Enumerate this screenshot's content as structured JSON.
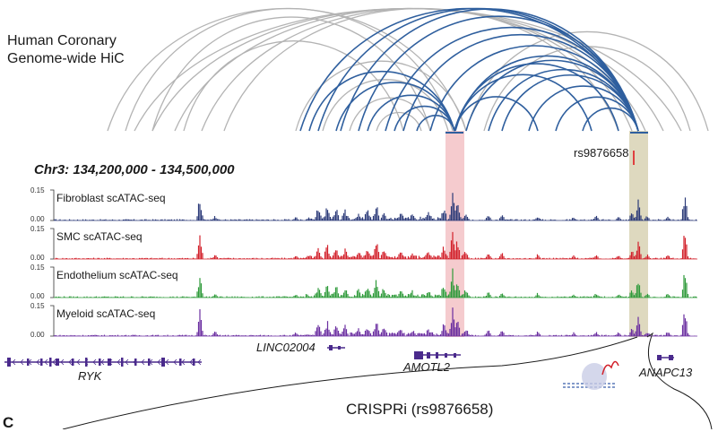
{
  "title_line1": "Human Coronary",
  "title_line2": "Genome-wide HiC",
  "region": "Chr3: 134,200,000 - 134,500,000",
  "snp": "rs9876658",
  "tracks": [
    {
      "label": "Fibroblast scATAC-seq",
      "color": "#2b3a78",
      "ymax": "0.15",
      "ymin": "0.00"
    },
    {
      "label": "SMC scATAC-seq",
      "color": "#d2202a",
      "ymax": "0.15",
      "ymin": "0.00"
    },
    {
      "label": "Endothelium scATAC-seq",
      "color": "#2e9a3a",
      "ymax": "0.15",
      "ymin": "0.00"
    },
    {
      "label": "Myeloid scATAC-seq",
      "color": "#6a2ea0",
      "ymax": "0.15",
      "ymin": "0.00"
    }
  ],
  "genes": {
    "ryk": "RYK",
    "linc": "LINC02004",
    "amotl2": "AMOTL2",
    "anapc13": "ANAPC13"
  },
  "crispri": "CRISPRi (rs9876658)",
  "panel_c": "C",
  "colors": {
    "hic_gray": "#b3b3b3",
    "hic_blue": "#2f5f9e",
    "amotl2_highlight": "#f1b9bd",
    "snp_highlight": "#d8d2b4",
    "gene_color": "#4a2a8c"
  }
}
